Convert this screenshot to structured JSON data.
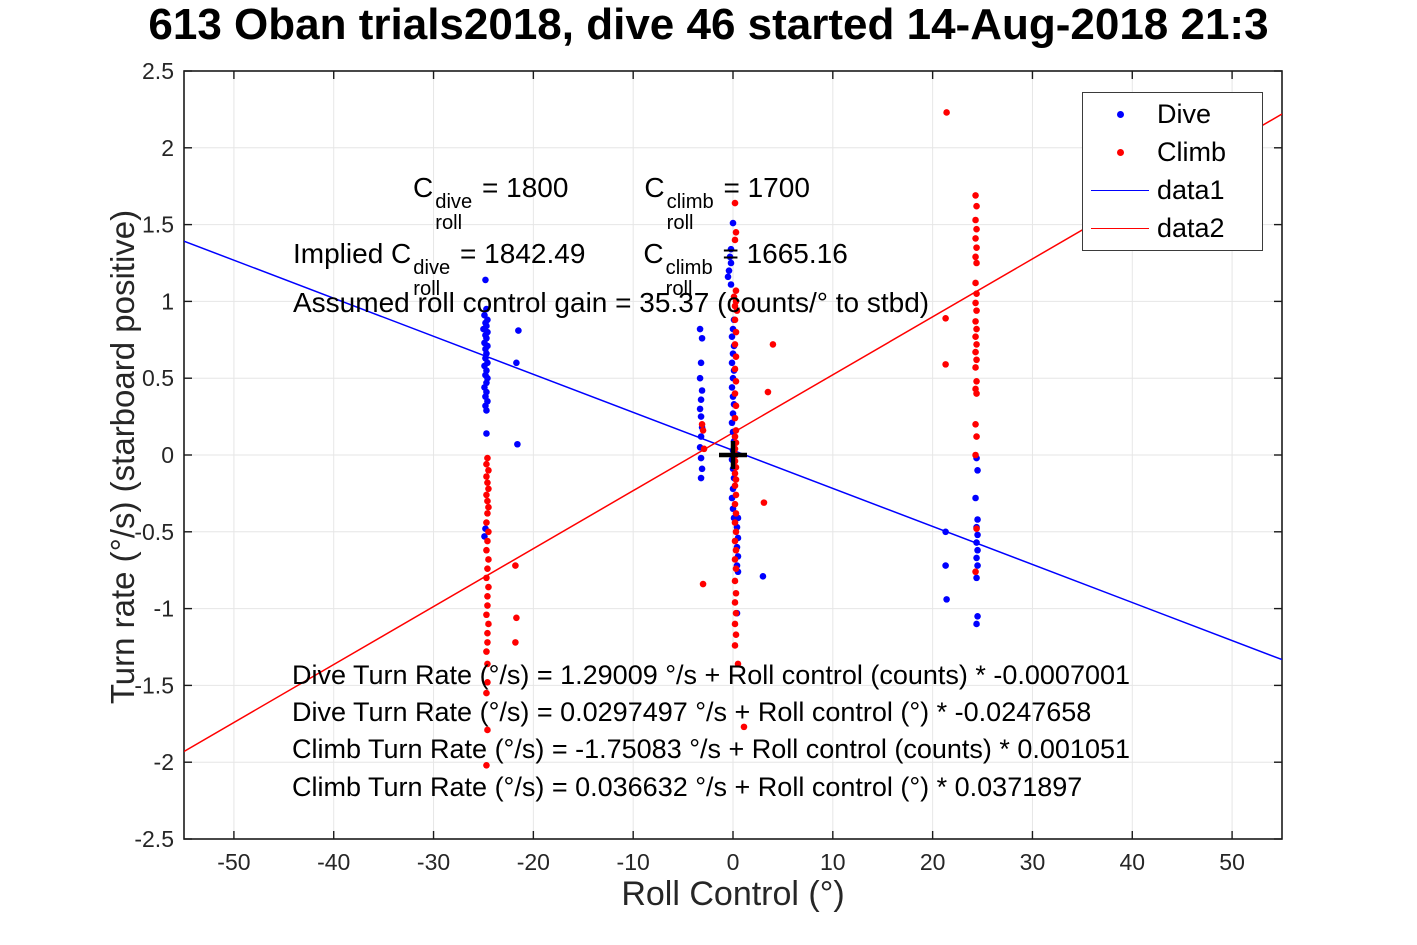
{
  "title": "613 Oban trials2018, dive 46 started 14-Aug-2018 21:3",
  "axes": {
    "x_label": "Roll Control (°)",
    "y_label": "Turn rate (°/s) (starboard positive)"
  },
  "legend": {
    "items": [
      {
        "label": "Dive",
        "marker": "dot",
        "color": "#0000ff"
      },
      {
        "label": "Climb",
        "marker": "dot",
        "color": "#ff0000"
      },
      {
        "label": "data1",
        "marker": "line",
        "color": "#0000ff"
      },
      {
        "label": "data2",
        "marker": "line",
        "color": "#ff0000"
      }
    ]
  },
  "annotations": {
    "c_line1": {
      "c1": "C",
      "c1_sup": "dive",
      "c1_sub": "roll",
      "c1_eq": " = 1800",
      "c2": "C",
      "c2_sup": "climb",
      "c2_sub": "roll",
      "c2_eq": " = 1700"
    },
    "c_line2": {
      "prefix": "Implied ",
      "c1": "C",
      "c1_sup": "dive",
      "c1_sub": "roll",
      "c1_eq": " = 1842.49",
      "c2": "C",
      "c2_sup": "climb",
      "c2_sub": "roll",
      "c2_eq": " = 1665.16"
    },
    "gain_line": "Assumed roll control gain = 35.37 (counts/° to stbd)",
    "fits": [
      "Dive Turn Rate (°/s) = 1.29009 °/s + Roll control (counts) * -0.0007001",
      "Dive Turn Rate (°/s) = 0.0297497 °/s + Roll control (°) * -0.0247658",
      "Climb Turn Rate (°/s) = -1.75083 °/s + Roll control (counts) * 0.001051",
      "Climb Turn Rate (°/s) = 0.036632 °/s + Roll control (°) * 0.0371897"
    ]
  },
  "chart_data": {
    "type": "scatter",
    "title": "613 Oban trials2018, dive 46 started 14-Aug-2018 21:3",
    "xlabel": "Roll Control (°)",
    "ylabel": "Turn rate (°/s) (starboard positive)",
    "xlim": [
      -55,
      55
    ],
    "ylim": [
      -2.5,
      2.5
    ],
    "x_ticks": [
      -50,
      -40,
      -30,
      -20,
      -10,
      0,
      10,
      20,
      30,
      40,
      50
    ],
    "y_ticks": [
      -2.5,
      -2,
      -1.5,
      -1,
      -0.5,
      0,
      0.5,
      1,
      1.5,
      2,
      2.5
    ],
    "grid": true,
    "legend_position": "top-right",
    "grid_color": "#e6e6e6",
    "axis_color": "#1a1a1a",
    "series": [
      {
        "name": "Dive",
        "type": "scatter",
        "color": "#0000ff",
        "points": [
          [
            -24.8,
            1.14
          ],
          [
            -24.7,
            0.95
          ],
          [
            -24.9,
            0.91
          ],
          [
            -24.6,
            0.88
          ],
          [
            -24.8,
            0.86
          ],
          [
            -24.7,
            0.84
          ],
          [
            -25.0,
            0.82
          ],
          [
            -24.6,
            0.8
          ],
          [
            -24.8,
            0.78
          ],
          [
            -24.7,
            0.76
          ],
          [
            -24.9,
            0.73
          ],
          [
            -24.6,
            0.71
          ],
          [
            -24.8,
            0.69
          ],
          [
            -24.7,
            0.66
          ],
          [
            -24.8,
            0.63
          ],
          [
            -24.6,
            0.6
          ],
          [
            -24.9,
            0.58
          ],
          [
            -24.7,
            0.55
          ],
          [
            -24.8,
            0.52
          ],
          [
            -24.6,
            0.5
          ],
          [
            -24.7,
            0.47
          ],
          [
            -24.9,
            0.44
          ],
          [
            -24.7,
            0.41
          ],
          [
            -24.8,
            0.38
          ],
          [
            -24.6,
            0.35
          ],
          [
            -24.8,
            0.32
          ],
          [
            -24.7,
            0.29
          ],
          [
            -24.7,
            0.14
          ],
          [
            -24.8,
            -0.48
          ],
          [
            -24.9,
            -0.53
          ],
          [
            -21.5,
            0.81
          ],
          [
            -21.7,
            0.6
          ],
          [
            -21.6,
            0.07
          ],
          [
            -3.3,
            0.82
          ],
          [
            -3.1,
            0.76
          ],
          [
            -3.2,
            0.6
          ],
          [
            -3.3,
            0.5
          ],
          [
            -3.1,
            0.42
          ],
          [
            -3.2,
            0.36
          ],
          [
            -3.3,
            0.3
          ],
          [
            -3.2,
            0.25
          ],
          [
            -3.1,
            0.18
          ],
          [
            -3.2,
            0.12
          ],
          [
            -3.3,
            0.05
          ],
          [
            -3.2,
            -0.02
          ],
          [
            -3.1,
            -0.09
          ],
          [
            -3.2,
            -0.15
          ],
          [
            0.0,
            1.51
          ],
          [
            -0.2,
            1.34
          ],
          [
            -0.3,
            1.29
          ],
          [
            -0.2,
            1.25
          ],
          [
            -0.4,
            1.2
          ],
          [
            -0.5,
            1.16
          ],
          [
            -0.2,
            1.11
          ],
          [
            0.1,
            0.88
          ],
          [
            0.0,
            0.82
          ],
          [
            -0.1,
            0.77
          ],
          [
            0.1,
            0.71
          ],
          [
            0.0,
            0.66
          ],
          [
            -0.1,
            0.6
          ],
          [
            0.1,
            0.55
          ],
          [
            0.0,
            0.5
          ],
          [
            -0.1,
            0.44
          ],
          [
            0.0,
            0.38
          ],
          [
            0.1,
            0.33
          ],
          [
            0.0,
            0.27
          ],
          [
            -0.1,
            0.21
          ],
          [
            0.0,
            0.15
          ],
          [
            0.1,
            0.09
          ],
          [
            0.0,
            0.03
          ],
          [
            -0.1,
            -0.03
          ],
          [
            0.0,
            -0.09
          ],
          [
            0.1,
            -0.15
          ],
          [
            0.0,
            -0.22
          ],
          [
            -0.1,
            -0.28
          ],
          [
            0.0,
            -0.35
          ],
          [
            0.1,
            -0.41
          ],
          [
            0.5,
            -0.41
          ],
          [
            0.4,
            -0.47
          ],
          [
            0.5,
            -0.54
          ],
          [
            0.4,
            -0.6
          ],
          [
            0.5,
            -0.66
          ],
          [
            0.4,
            -0.72
          ],
          [
            0.5,
            -0.76
          ],
          [
            0.4,
            -1.03
          ],
          [
            3.0,
            -0.79
          ],
          [
            24.4,
            -0.02
          ],
          [
            24.5,
            -0.1
          ],
          [
            24.3,
            -0.28
          ],
          [
            24.5,
            -0.42
          ],
          [
            24.4,
            -0.47
          ],
          [
            24.5,
            -0.52
          ],
          [
            24.4,
            -0.57
          ],
          [
            24.5,
            -0.62
          ],
          [
            24.4,
            -0.67
          ],
          [
            24.5,
            -0.72
          ],
          [
            24.4,
            -0.8
          ],
          [
            24.5,
            -1.05
          ],
          [
            24.4,
            -1.1
          ],
          [
            21.3,
            -0.5
          ],
          [
            21.3,
            -0.72
          ],
          [
            21.4,
            -0.94
          ]
        ]
      },
      {
        "name": "Climb",
        "type": "scatter",
        "color": "#ff0000",
        "points": [
          [
            -24.6,
            -0.02
          ],
          [
            -24.7,
            -0.06
          ],
          [
            -24.5,
            -0.1
          ],
          [
            -24.7,
            -0.14
          ],
          [
            -24.6,
            -0.18
          ],
          [
            -24.5,
            -0.22
          ],
          [
            -24.7,
            -0.26
          ],
          [
            -24.6,
            -0.3
          ],
          [
            -24.5,
            -0.34
          ],
          [
            -24.6,
            -0.38
          ],
          [
            -24.7,
            -0.44
          ],
          [
            -24.5,
            -0.5
          ],
          [
            -24.6,
            -0.56
          ],
          [
            -24.7,
            -0.62
          ],
          [
            -24.5,
            -0.68
          ],
          [
            -24.6,
            -0.74
          ],
          [
            -24.7,
            -0.8
          ],
          [
            -24.5,
            -0.86
          ],
          [
            -24.6,
            -0.92
          ],
          [
            -24.6,
            -0.98
          ],
          [
            -24.7,
            -1.04
          ],
          [
            -24.5,
            -1.1
          ],
          [
            -24.6,
            -1.16
          ],
          [
            -24.6,
            -1.22
          ],
          [
            -24.7,
            -1.28
          ],
          [
            -24.6,
            -1.36
          ],
          [
            -24.6,
            -1.48
          ],
          [
            -24.7,
            -1.55
          ],
          [
            -24.6,
            -1.79
          ],
          [
            -24.7,
            -2.02
          ],
          [
            -21.8,
            -0.72
          ],
          [
            -21.7,
            -1.06
          ],
          [
            -21.8,
            -1.22
          ],
          [
            -3.1,
            0.2
          ],
          [
            -3.0,
            0.16
          ],
          [
            -2.9,
            0.04
          ],
          [
            -3.0,
            -0.84
          ],
          [
            0.2,
            1.64
          ],
          [
            0.3,
            1.45
          ],
          [
            0.2,
            1.4
          ],
          [
            0.3,
            1.07
          ],
          [
            0.1,
            1.03
          ],
          [
            0.3,
            1.0
          ],
          [
            0.2,
            0.97
          ],
          [
            0.4,
            0.94
          ],
          [
            0.2,
            0.88
          ],
          [
            0.3,
            0.8
          ],
          [
            0.2,
            0.72
          ],
          [
            0.3,
            0.64
          ],
          [
            0.2,
            0.56
          ],
          [
            0.3,
            0.48
          ],
          [
            0.2,
            0.4
          ],
          [
            0.3,
            0.32
          ],
          [
            0.2,
            0.24
          ],
          [
            0.3,
            0.16
          ],
          [
            0.2,
            0.12
          ],
          [
            0.3,
            0.08
          ],
          [
            0.2,
            0.04
          ],
          [
            0.3,
            0.0
          ],
          [
            0.2,
            -0.04
          ],
          [
            0.3,
            -0.08
          ],
          [
            0.2,
            -0.12
          ],
          [
            0.3,
            -0.16
          ],
          [
            0.2,
            -0.2
          ],
          [
            0.3,
            -0.26
          ],
          [
            0.2,
            -0.32
          ],
          [
            0.3,
            -0.38
          ],
          [
            0.2,
            -0.44
          ],
          [
            0.3,
            -0.5
          ],
          [
            0.2,
            -0.56
          ],
          [
            0.3,
            -0.62
          ],
          [
            0.2,
            -0.68
          ],
          [
            0.3,
            -0.74
          ],
          [
            0.2,
            -0.82
          ],
          [
            0.3,
            -0.9
          ],
          [
            0.2,
            -0.96
          ],
          [
            0.3,
            -1.03
          ],
          [
            0.2,
            -1.1
          ],
          [
            0.3,
            -1.17
          ],
          [
            0.2,
            -1.24
          ],
          [
            0.5,
            -1.36
          ],
          [
            1.1,
            -1.77
          ],
          [
            4.0,
            0.72
          ],
          [
            3.5,
            0.41
          ],
          [
            3.1,
            -0.31
          ],
          [
            21.4,
            2.23
          ],
          [
            21.3,
            0.89
          ],
          [
            21.3,
            0.59
          ],
          [
            24.3,
            1.69
          ],
          [
            24.4,
            1.62
          ],
          [
            24.3,
            1.53
          ],
          [
            24.4,
            1.47
          ],
          [
            24.3,
            1.41
          ],
          [
            24.4,
            1.35
          ],
          [
            24.3,
            1.29
          ],
          [
            24.4,
            1.25
          ],
          [
            24.3,
            1.12
          ],
          [
            24.4,
            1.05
          ],
          [
            24.3,
            0.99
          ],
          [
            24.4,
            0.94
          ],
          [
            24.3,
            0.87
          ],
          [
            24.4,
            0.82
          ],
          [
            24.3,
            0.77
          ],
          [
            24.4,
            0.72
          ],
          [
            24.3,
            0.67
          ],
          [
            24.4,
            0.62
          ],
          [
            24.3,
            0.57
          ],
          [
            24.4,
            0.48
          ],
          [
            24.3,
            0.43
          ],
          [
            24.4,
            0.4
          ],
          [
            24.3,
            0.2
          ],
          [
            24.4,
            0.12
          ],
          [
            24.3,
            0.0
          ],
          [
            24.4,
            -0.48
          ],
          [
            24.3,
            -0.76
          ]
        ]
      },
      {
        "name": "data1",
        "type": "line",
        "color": "#0000ff",
        "points": [
          [
            -55,
            1.392
          ],
          [
            55,
            -1.332
          ]
        ]
      },
      {
        "name": "data2",
        "type": "line",
        "color": "#ff0000",
        "points": [
          [
            -55,
            -1.93
          ],
          [
            55,
            2.22
          ]
        ]
      }
    ],
    "marker": {
      "type": "plus",
      "at": [
        0,
        0
      ],
      "color": "#000000"
    }
  }
}
